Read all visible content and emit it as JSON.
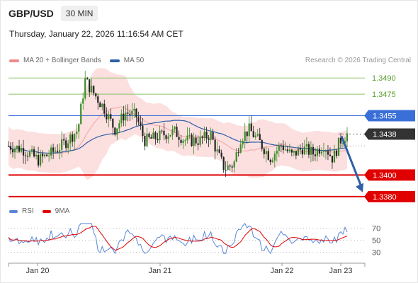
{
  "header": {
    "pair": "GBP/USD",
    "timeframe": "30 MIN",
    "datetime": "Thursday, January 22, 2026 11:16:54 AM CET"
  },
  "legend": {
    "items": [
      {
        "label": "MA 20 + Bollinger Bands",
        "color": "#f08a8a"
      },
      {
        "label": "MA 50",
        "color": "#2f5fa7"
      }
    ]
  },
  "credit": "Research © 2026 Trading Central",
  "rsi_legend": {
    "items": [
      {
        "label": "RSI",
        "color": "#5b86d6"
      },
      {
        "label": "9MA",
        "color": "#e00000"
      }
    ]
  },
  "chart_data": [
    {
      "type": "candlestick",
      "x_labels": [
        "Jan 20",
        "Jan 21",
        "Jan 22",
        "Jan 23"
      ],
      "y_range": [
        1.3372,
        1.35
      ],
      "current_price": 1.3438,
      "price_levels": [
        {
          "label": "1.3490",
          "value": 1.349,
          "kind": "resistance-light",
          "color": "#8dc26a"
        },
        {
          "label": "1.3475",
          "value": 1.3475,
          "kind": "resistance-light",
          "color": "#8dc26a"
        },
        {
          "label": "1.3455",
          "value": 1.3455,
          "kind": "pivot",
          "color": "#3a6fd8"
        },
        {
          "label": "1.3438",
          "value": 1.3438,
          "kind": "last",
          "color": "#333333"
        },
        {
          "label": "1.3400",
          "value": 1.34,
          "kind": "support",
          "color": "#e00000"
        },
        {
          "label": "1.3380",
          "value": 1.338,
          "kind": "support",
          "color": "#e00000"
        }
      ],
      "forecast_arrow": {
        "from": 1.3436,
        "to": 1.3384,
        "color": "#2f5fa7"
      }
    },
    {
      "type": "line",
      "title": "RSI",
      "y_ticks": [
        "70",
        "50",
        "30"
      ],
      "y_range": [
        20,
        85
      ],
      "series": [
        {
          "name": "RSI",
          "color": "#5b86d6"
        },
        {
          "name": "9MA",
          "color": "#e00000"
        }
      ]
    }
  ]
}
